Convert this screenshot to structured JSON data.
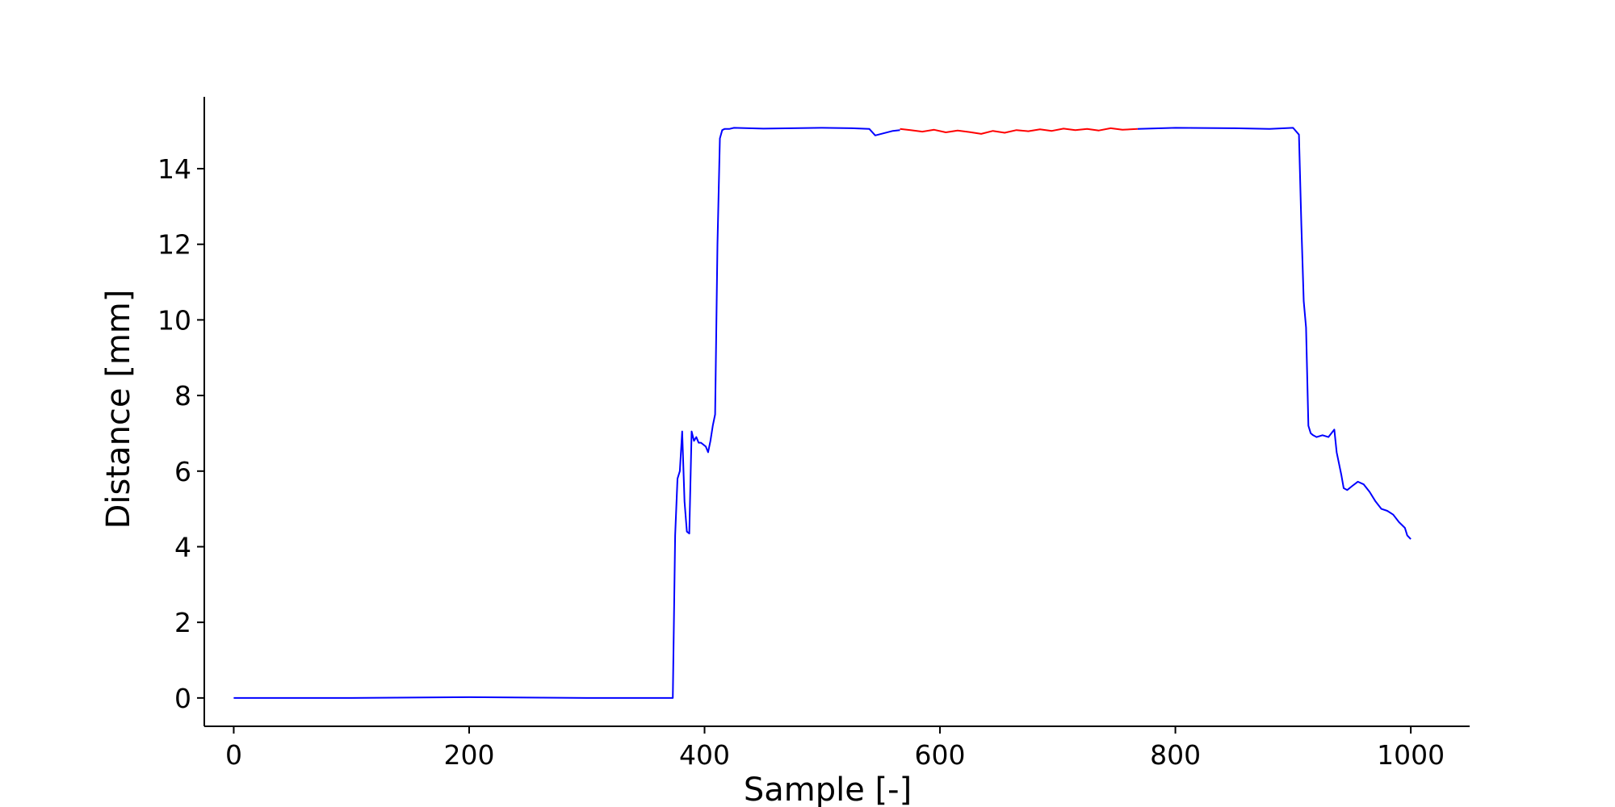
{
  "chart_data": {
    "type": "line",
    "title": "",
    "xlabel": "Sample [-]",
    "ylabel": "Distance [mm]",
    "xlim": [
      -25,
      1050
    ],
    "ylim": [
      -0.75,
      15.9
    ],
    "xticks": [
      0,
      200,
      400,
      600,
      800,
      1000
    ],
    "yticks": [
      0,
      2,
      4,
      6,
      8,
      10,
      12,
      14
    ],
    "xtick_labels": [
      "0",
      "200",
      "400",
      "600",
      "800",
      "1000"
    ],
    "ytick_labels": [
      "0",
      "2",
      "4",
      "6",
      "8",
      "10",
      "12",
      "14"
    ],
    "grid": false,
    "legend": "none",
    "spines": [
      "left",
      "bottom"
    ],
    "series": [
      {
        "color": "#0000ff",
        "x": [
          0,
          100,
          200,
          300,
          373,
          375,
          377,
          379,
          381,
          383,
          385,
          387,
          389,
          391,
          393,
          395,
          397,
          399,
          401,
          403,
          405,
          407,
          409,
          411,
          413,
          415,
          417,
          419,
          421,
          425,
          450,
          500,
          525,
          540,
          545,
          560,
          566
        ],
        "y": [
          0.0,
          0.0,
          0.02,
          0.0,
          0.0,
          4.3,
          5.8,
          6.0,
          7.05,
          5.2,
          4.4,
          4.35,
          7.05,
          6.8,
          6.9,
          6.75,
          6.75,
          6.7,
          6.65,
          6.5,
          6.8,
          7.2,
          7.5,
          12.0,
          14.8,
          15.02,
          15.05,
          15.05,
          15.05,
          15.08,
          15.06,
          15.08,
          15.07,
          15.05,
          14.88,
          15.0,
          15.02
        ]
      },
      {
        "color": "#ff0000",
        "x": [
          566,
          575,
          585,
          595,
          605,
          615,
          625,
          635,
          645,
          655,
          665,
          675,
          685,
          695,
          705,
          715,
          725,
          735,
          745,
          755,
          768
        ],
        "y": [
          15.05,
          15.02,
          14.98,
          15.03,
          14.96,
          15.01,
          14.97,
          14.92,
          15.0,
          14.95,
          15.02,
          14.99,
          15.04,
          15.0,
          15.06,
          15.02,
          15.05,
          15.01,
          15.07,
          15.03,
          15.05
        ]
      },
      {
        "color": "#0000ff",
        "x": [
          768,
          800,
          850,
          880,
          900,
          905,
          907,
          909,
          911,
          913,
          915,
          917,
          920,
          925,
          930,
          935,
          937,
          939,
          941,
          943,
          946,
          950,
          955,
          960,
          965,
          970,
          975,
          980,
          985,
          990,
          995,
          997,
          1000
        ],
        "y": [
          15.05,
          15.08,
          15.07,
          15.05,
          15.08,
          14.9,
          12.5,
          10.5,
          9.8,
          7.2,
          7.0,
          6.95,
          6.9,
          6.95,
          6.9,
          7.1,
          6.5,
          6.2,
          5.9,
          5.55,
          5.5,
          5.6,
          5.72,
          5.65,
          5.45,
          5.2,
          5.0,
          4.95,
          4.85,
          4.65,
          4.5,
          4.3,
          4.2
        ]
      }
    ]
  }
}
